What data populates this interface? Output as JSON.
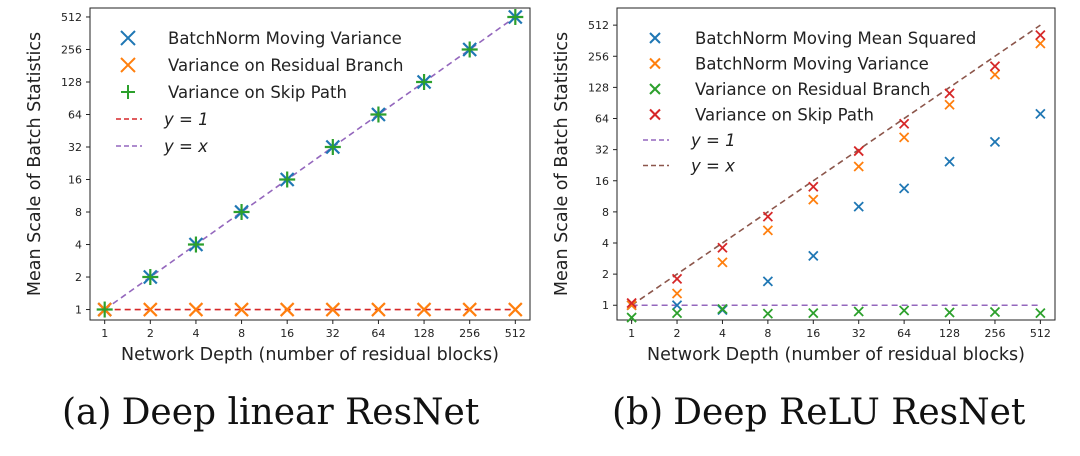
{
  "chart_data": [
    {
      "type": "scatter",
      "scale": "log2",
      "xlabel": "Network Depth (number of residual blocks)",
      "ylabel": "Mean Scale of Batch Statistics",
      "x": [
        1,
        2,
        4,
        8,
        16,
        32,
        64,
        128,
        256,
        512
      ],
      "xticks": [
        "1",
        "2",
        "4",
        "8",
        "16",
        "32",
        "64",
        "128",
        "256",
        "512"
      ],
      "yticks": [
        1,
        2,
        4,
        8,
        16,
        32,
        64,
        128,
        256,
        512
      ],
      "ytick_labels": [
        "1",
        "2",
        "4",
        "8",
        "16",
        "32",
        "64",
        "128",
        "256",
        "512"
      ],
      "xlim": [
        0.8,
        640
      ],
      "ylim": [
        0.8,
        620
      ],
      "legend_position": "top-left",
      "series": [
        {
          "name": "BatchNorm Moving Variance",
          "marker": "x",
          "color": "#1f77b4",
          "values": [
            1,
            2,
            4,
            8,
            16,
            32,
            64,
            128,
            256,
            512
          ]
        },
        {
          "name": "Variance on Residual Branch",
          "marker": "x",
          "color": "#ff7f0e",
          "values": [
            1,
            1,
            1,
            1,
            1,
            1,
            1,
            1,
            1,
            1
          ]
        },
        {
          "name": "Variance on Skip Path",
          "marker": "+",
          "color": "#2ca02c",
          "values": [
            1,
            2,
            4,
            8,
            16,
            32,
            64,
            128,
            256,
            512
          ]
        }
      ],
      "reference_lines": [
        {
          "name": "y = 1",
          "type": "y1",
          "color": "#d62728"
        },
        {
          "name": "y = x",
          "type": "yx",
          "color": "#9467bd"
        }
      ]
    },
    {
      "type": "scatter",
      "scale": "log2",
      "xlabel": "Network Depth (number of residual blocks)",
      "ylabel": "Mean Scale of Batch Statistics",
      "x": [
        1,
        2,
        4,
        8,
        16,
        32,
        64,
        128,
        256,
        512
      ],
      "xticks": [
        "1",
        "2",
        "4",
        "8",
        "16",
        "32",
        "64",
        "128",
        "256",
        "512"
      ],
      "yticks": [
        1,
        2,
        4,
        8,
        16,
        32,
        64,
        128,
        256,
        512
      ],
      "ytick_labels": [
        "1",
        "2",
        "4",
        "8",
        "16",
        "32",
        "64",
        "128",
        "256",
        "512"
      ],
      "xlim": [
        0.8,
        640
      ],
      "ylim": [
        0.72,
        750
      ],
      "legend_position": "top-left",
      "series": [
        {
          "name": "BatchNorm Moving Mean Squared",
          "marker": "x",
          "color": "#1f77b4",
          "values": [
            1.0,
            1.0,
            0.9,
            1.7,
            3.0,
            9.0,
            13.5,
            24.5,
            38,
            71
          ]
        },
        {
          "name": "BatchNorm Moving Variance",
          "marker": "x",
          "color": "#ff7f0e",
          "values": [
            1.0,
            1.3,
            2.6,
            5.3,
            10.5,
            22,
            42,
            87,
            170,
            340
          ]
        },
        {
          "name": "Variance on Residual Branch",
          "marker": "x",
          "color": "#2ca02c",
          "values": [
            0.76,
            0.84,
            0.92,
            0.83,
            0.84,
            0.87,
            0.89,
            0.85,
            0.86,
            0.84
          ]
        },
        {
          "name": "Variance on Skip Path",
          "marker": "x",
          "color": "#d62728",
          "values": [
            1.05,
            1.8,
            3.6,
            7.2,
            14,
            31,
            57,
            112,
            205,
            410
          ]
        }
      ],
      "reference_lines": [
        {
          "name": "y = 1",
          "type": "y1",
          "color": "#9467bd"
        },
        {
          "name": "y = x",
          "type": "yx",
          "color": "#8c564b"
        }
      ]
    }
  ],
  "captions": [
    {
      "label": "(a)",
      "text": "Deep linear ResNet"
    },
    {
      "label": "(b)",
      "text": "Deep ReLU ResNet"
    }
  ]
}
